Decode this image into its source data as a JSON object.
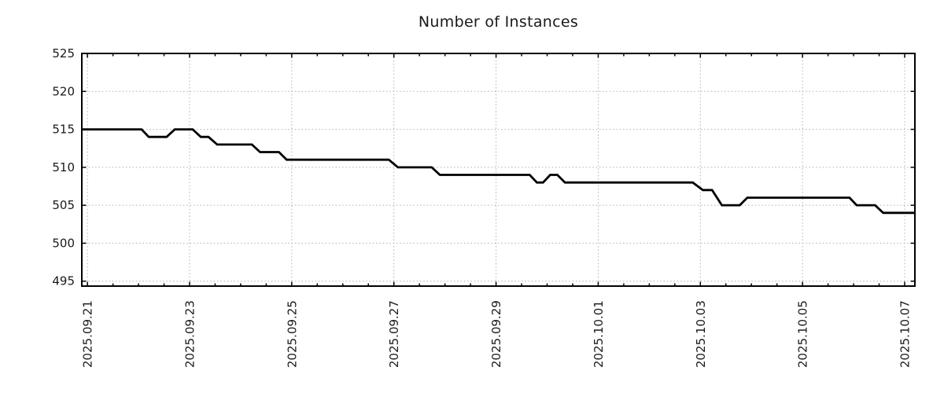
{
  "chart_data": {
    "type": "line",
    "title": "Number of Instances",
    "xlabel": "",
    "ylabel": "",
    "legend": "none",
    "grid": "dotted",
    "background_color": "#ffffff",
    "line_color": "#000000",
    "grid_color": "#b0b0b0",
    "border_color": "#000000",
    "x_axis": {
      "unit": "days since 2025-09-21",
      "range_days": [
        -0.11,
        16.2
      ],
      "major_ticks": [
        {
          "day": 0,
          "label": "2025.09.21"
        },
        {
          "day": 2,
          "label": "2025.09.23"
        },
        {
          "day": 4,
          "label": "2025.09.25"
        },
        {
          "day": 6,
          "label": "2025.09.27"
        },
        {
          "day": 8,
          "label": "2025.09.29"
        },
        {
          "day": 10,
          "label": "2025.10.01"
        },
        {
          "day": 12,
          "label": "2025.10.03"
        },
        {
          "day": 14,
          "label": "2025.10.05"
        },
        {
          "day": 16,
          "label": "2025.10.07"
        }
      ],
      "minor_tick_start": 0,
      "minor_tick_end": 16,
      "minor_tick_step": 0.5
    },
    "y_axis": {
      "range": [
        494.35,
        525
      ],
      "ticks": [
        495,
        500,
        505,
        510,
        515,
        520,
        525
      ]
    },
    "series": [
      {
        "name": "instances",
        "points": [
          [
            -0.11,
            515
          ],
          [
            1.06,
            515
          ],
          [
            1.2,
            514
          ],
          [
            1.55,
            514
          ],
          [
            1.71,
            515
          ],
          [
            2.06,
            515
          ],
          [
            2.22,
            514
          ],
          [
            2.37,
            514
          ],
          [
            2.54,
            513
          ],
          [
            3.22,
            513
          ],
          [
            3.38,
            512
          ],
          [
            3.75,
            512
          ],
          [
            3.9,
            511
          ],
          [
            5.9,
            511
          ],
          [
            6.08,
            510
          ],
          [
            6.74,
            510
          ],
          [
            6.9,
            509
          ],
          [
            8.66,
            509
          ],
          [
            8.8,
            508
          ],
          [
            8.92,
            508
          ],
          [
            9.06,
            509
          ],
          [
            9.2,
            509
          ],
          [
            9.35,
            508
          ],
          [
            11.85,
            508
          ],
          [
            12.05,
            507
          ],
          [
            12.23,
            507
          ],
          [
            12.42,
            505
          ],
          [
            12.77,
            505
          ],
          [
            12.92,
            506
          ],
          [
            14.92,
            506
          ],
          [
            15.06,
            505
          ],
          [
            15.42,
            505
          ],
          [
            15.58,
            504
          ],
          [
            16.2,
            504
          ]
        ]
      }
    ]
  }
}
